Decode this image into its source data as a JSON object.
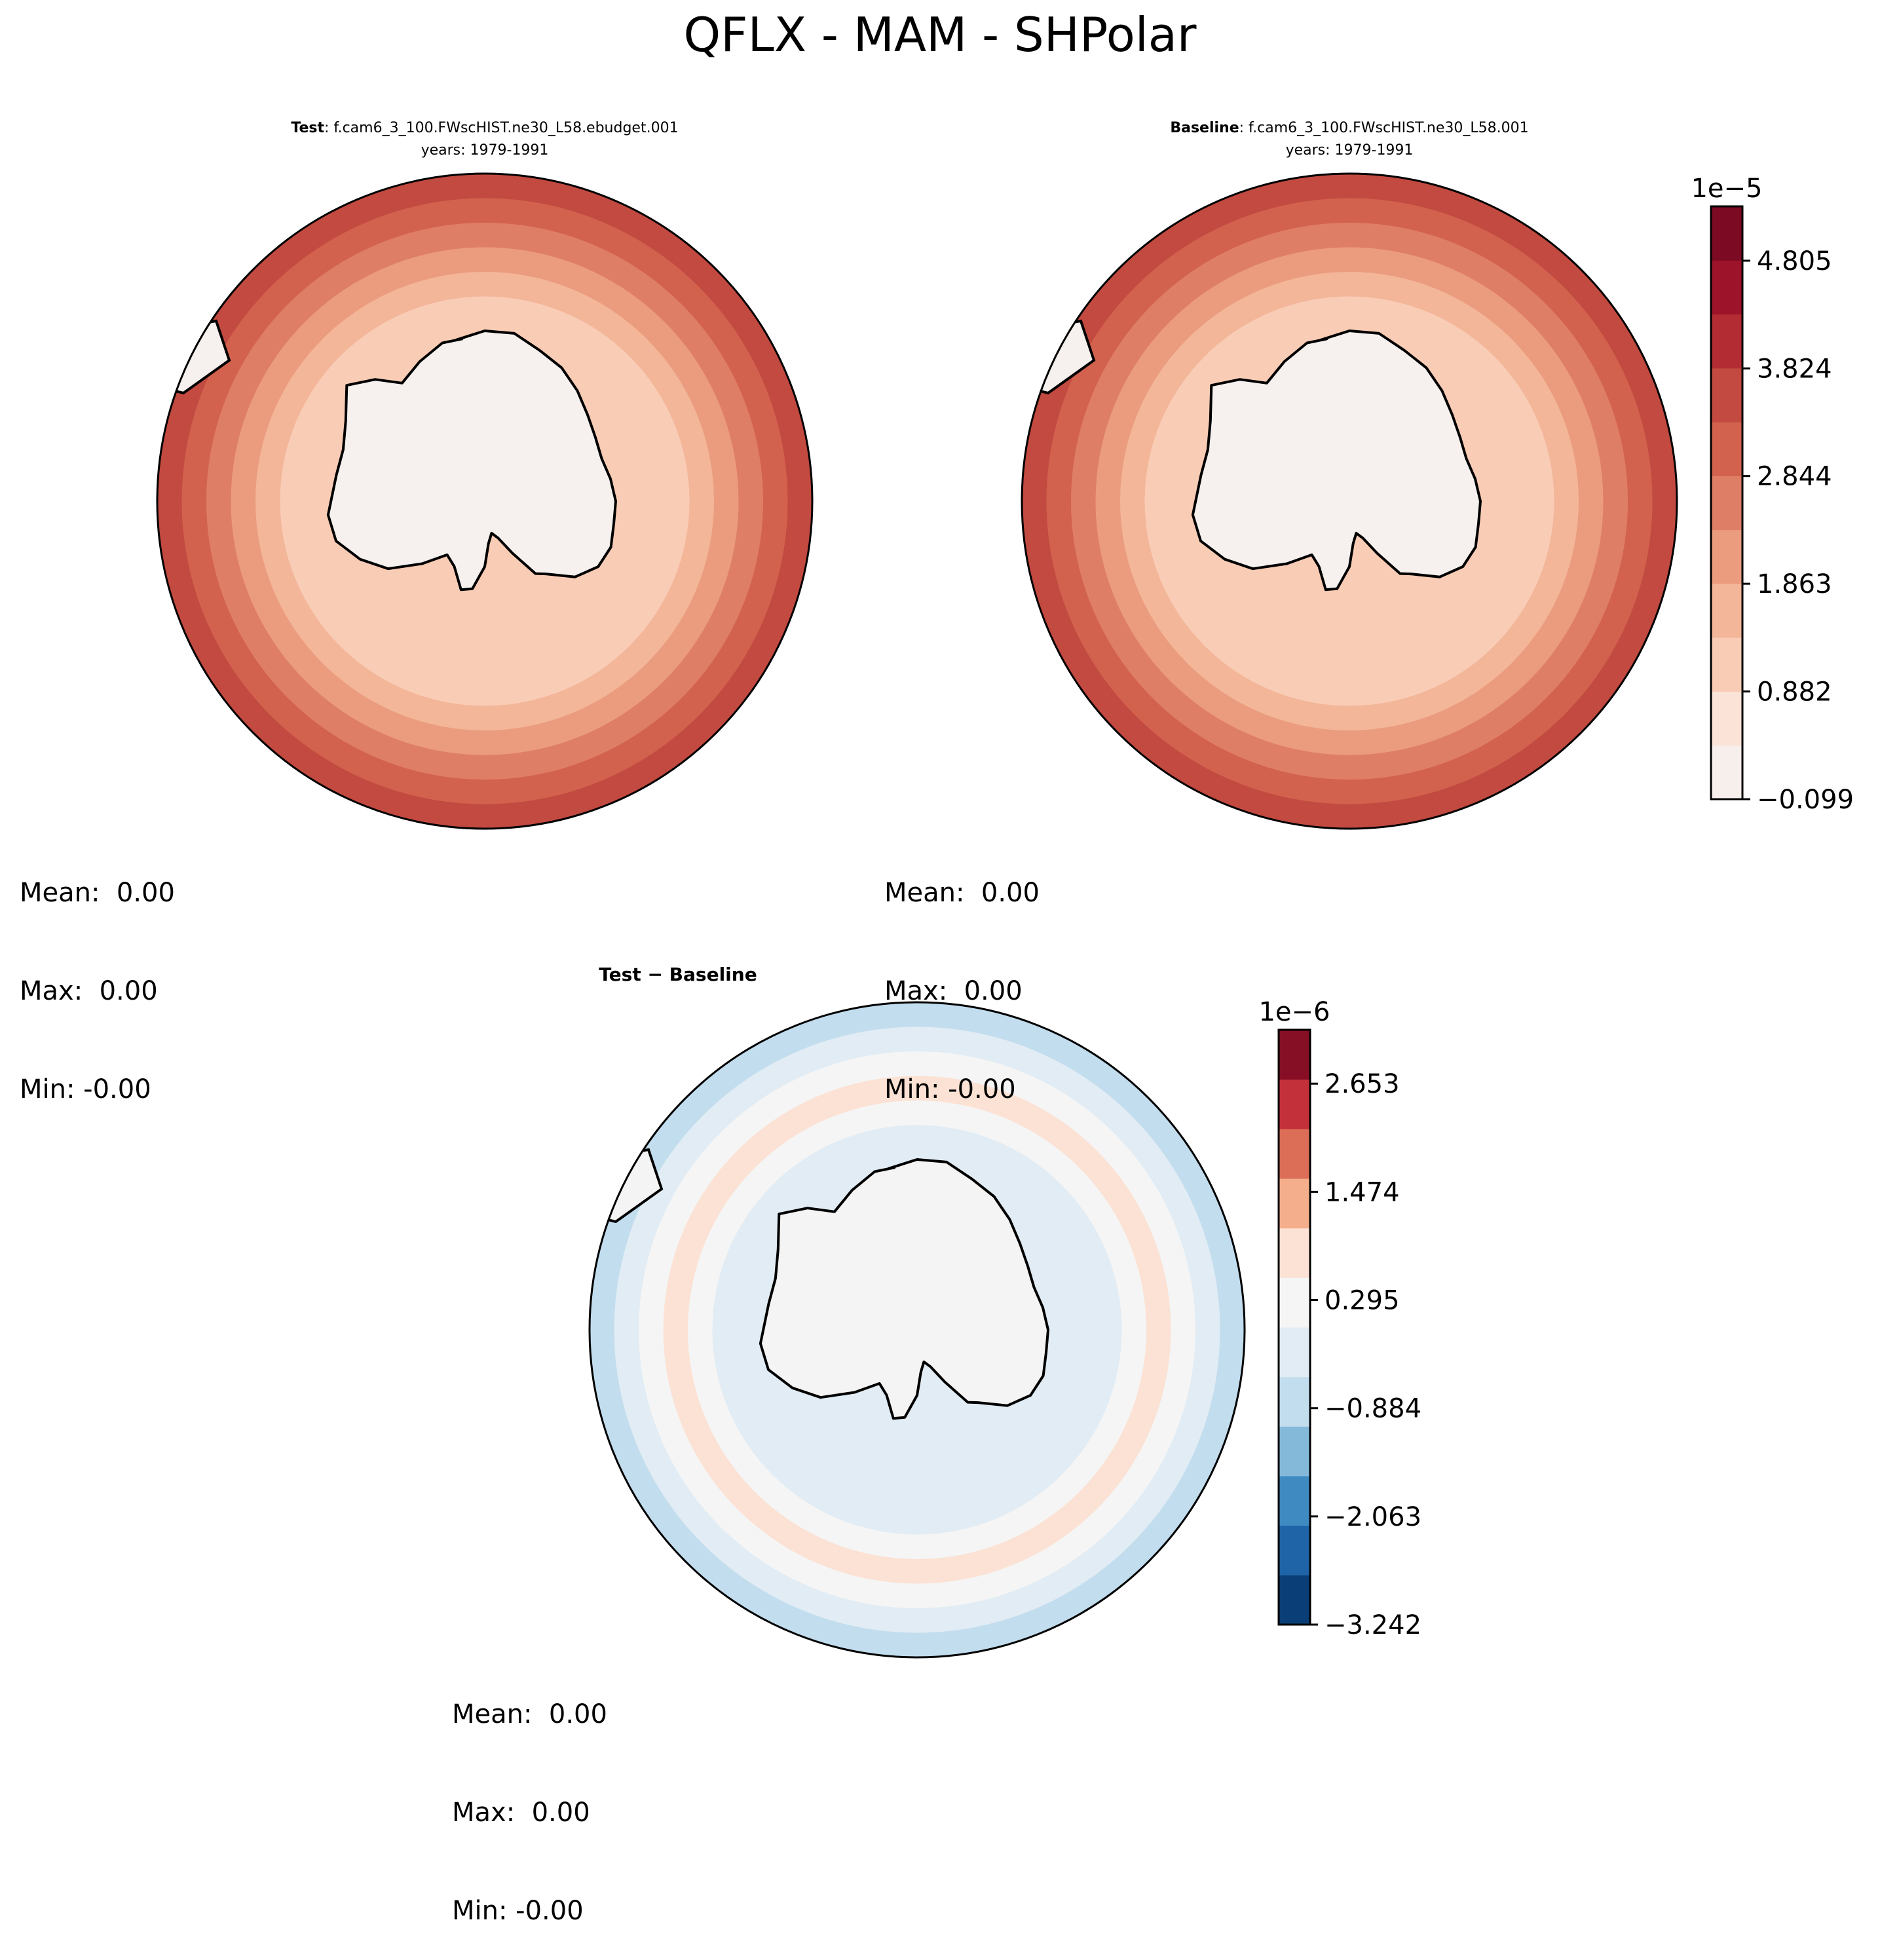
{
  "figure_title": "QFLX - MAM - SHPolar",
  "colors": {
    "reds": [
      "#f6efec",
      "#fbe3d7",
      "#f9ccb6",
      "#f3b699",
      "#eb9c7e",
      "#df7e66",
      "#d2624e",
      "#c24a40",
      "#b42c33",
      "#9d1329",
      "#7b0a22"
    ],
    "diff": [
      "#093f76",
      "#1f64a6",
      "#3f8ac1",
      "#85b9d9",
      "#c2ddee",
      "#e1ecf4",
      "#f5f5f5",
      "#fbe2d4",
      "#f4ae8b",
      "#dc6e57",
      "#c4303a",
      "#860f26"
    ],
    "land": "#f6f1ee",
    "land_diff": "#f4f4f4",
    "coast": "#000000"
  },
  "panels": {
    "test": {
      "label_bold": "Test",
      "label_rest": ": f.cam6_3_100.FWscHIST.ne30_L58.ebudget.001",
      "years": "years: 1979-1991",
      "stats": {
        "mean": "Mean:  0.00",
        "max": "Max:  0.00",
        "min": "Min: -0.00"
      }
    },
    "baseline": {
      "label_bold": "Baseline",
      "label_rest": ": f.cam6_3_100.FWscHIST.ne30_L58.001",
      "years": "years: 1979-1991",
      "stats": {
        "mean": "Mean:  0.00",
        "max": "Max:  0.00",
        "min": "Min: -0.00"
      }
    },
    "diff": {
      "label_bold": "Test − Baseline",
      "stats": {
        "mean": "Mean:  0.00",
        "max": "Max:  0.00",
        "min": "Min: -0.00"
      }
    }
  },
  "chart_data": [
    {
      "type": "heatmap",
      "title": "Test: f.cam6_3_100.FWscHIST.ne30_L58.ebudget.001 years: 1979-1991",
      "projection": "South Polar Stereographic",
      "variable": "QFLX",
      "season": "MAM",
      "colorbar": {
        "scale_label": "1e−5",
        "range": [
          -0.099,
          5.3
        ],
        "ticks": [
          -0.099,
          0.882,
          1.863,
          2.844,
          3.824,
          4.805
        ],
        "tick_labels": [
          "−0.099",
          "0.882",
          "1.863",
          "2.844",
          "3.824",
          "4.805"
        ],
        "levels": 11
      }
    },
    {
      "type": "heatmap",
      "title": "Baseline: f.cam6_3_100.FWscHIST.ne30_L58.001 years: 1979-1991",
      "projection": "South Polar Stereographic",
      "variable": "QFLX",
      "season": "MAM",
      "colorbar": "shared with Test"
    },
    {
      "type": "heatmap",
      "title": "Test − Baseline",
      "projection": "South Polar Stereographic",
      "variable": "QFLX",
      "season": "MAM",
      "colorbar": {
        "scale_label": "1e−6",
        "range": [
          -3.242,
          3.24
        ],
        "ticks": [
          -3.242,
          -2.063,
          -0.884,
          0.295,
          1.474,
          2.653
        ],
        "tick_labels": [
          "−3.242",
          "−2.063",
          "−0.884",
          "0.295",
          "1.474",
          "2.653"
        ],
        "levels": 12
      }
    }
  ]
}
